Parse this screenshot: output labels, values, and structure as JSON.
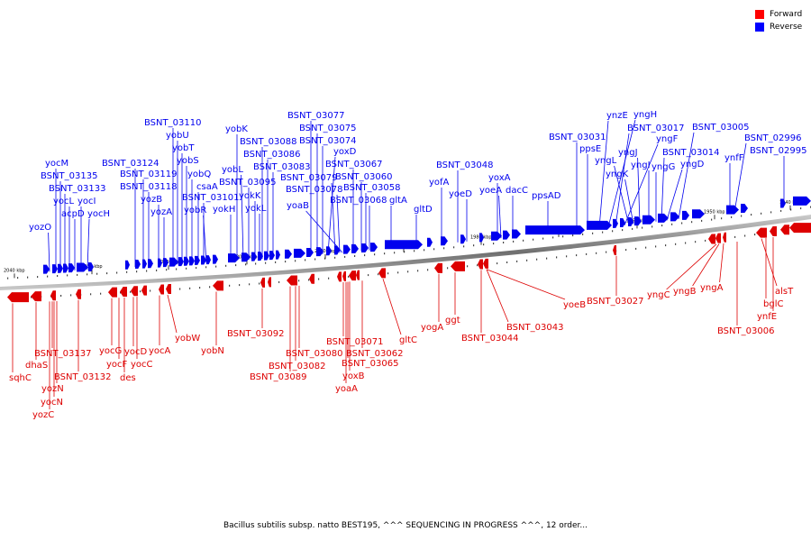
{
  "legend": {
    "forward_label": "Forward",
    "reverse_label": "Reverse",
    "forward_color": "#ff0000",
    "reverse_color": "#0000ff"
  },
  "colors": {
    "axis": "#7a7a7a",
    "forward": "#dd0000",
    "reverse": "#0000ee"
  },
  "caption": "Bacillus subtilis subsp. natto BEST195, ^^^ SEQUENCING IN PROGRESS ^^^, 12 order...",
  "kbp_marks": [
    "2040 kbp",
    "2030 kbp",
    "2020 kbp",
    "2010 kbp",
    "2000 kbp",
    "1990 kbp",
    "1980 kbp",
    "1970 kbp",
    "1960 kbp",
    "1950 kbp",
    "1940 kbp"
  ],
  "reverse_labels": [
    "yozO",
    "yocM",
    "BSNT_03135",
    "BSNT_03133",
    "yocL",
    "acpD",
    "yocI",
    "yocH",
    "BSNT_03124",
    "BSNT_03119",
    "BSNT_03118",
    "yozB",
    "yozA",
    "BSNT_03110",
    "yobU",
    "yobT",
    "yobS",
    "yobQ",
    "csaA",
    "BSNT_03101",
    "yobR",
    "yokH",
    "yobK",
    "yobL",
    "BSNT_03095",
    "yokK",
    "yokL",
    "BSNT_03088",
    "BSNT_03086",
    "BSNT_03083",
    "BSNT_03077",
    "BSNT_03075",
    "BSNT_03074",
    "yoxD",
    "BSNT_03079",
    "BSNT_03078",
    "yoaB",
    "BSNT_03067",
    "BSNT_03060",
    "BSNT_03058",
    "BSNT_03068",
    "gltA",
    "gltD",
    "yofA",
    "BSNT_03048",
    "yoeD",
    "yoxA",
    "yoeA",
    "dacC",
    "ppsAD",
    "BSNT_03031",
    "ppsE",
    "ynzE",
    "yngH",
    "BSNT_03017",
    "yngF",
    "yngL",
    "yngK",
    "yngJ",
    "yngI",
    "yngG",
    "BSNT_03014",
    "yngD",
    "BSNT_03005",
    "ynfF",
    "BSNT_02996",
    "BSNT_02995"
  ],
  "forward_labels": [
    "sqhC",
    "dhaS",
    "BSNT_03137",
    "yozN",
    "yocN",
    "yozC",
    "BSNT_03132",
    "yocG",
    "yocF",
    "des",
    "yocD",
    "yocC",
    "yocA",
    "yobW",
    "yobN",
    "BSNT_03092",
    "BSNT_03082",
    "BSNT_03089",
    "BSNT_03080",
    "BSNT_03071",
    "BSNT_03062",
    "yoxB",
    "BSNT_03065",
    "yoaA",
    "gltC",
    "yogA",
    "ggt",
    "BSNT_03044",
    "BSNT_03043",
    "yoeB",
    "BSNT_03027",
    "yngC",
    "yngB",
    "yngA",
    "BSNT_03006",
    "ynfE",
    "bglC",
    "alsT"
  ]
}
